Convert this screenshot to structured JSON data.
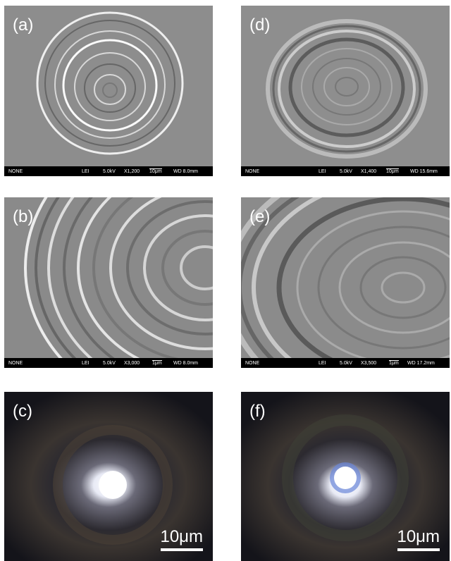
{
  "panels": [
    {
      "label": "(a)",
      "info_bar": [
        "NONE",
        "LEI",
        "5.0kV",
        "X1,200",
        "10μm",
        "WD 8.0mm"
      ]
    },
    {
      "label": "(b)",
      "info_bar": [
        "NONE",
        "LEI",
        "5.0kV",
        "X3,000",
        "1μm",
        "WD 8.0mm"
      ]
    },
    {
      "label": "(c)",
      "scale_bar": "10μm"
    },
    {
      "label": "(d)",
      "info_bar": [
        "NONE",
        "LEI",
        "5.0kV",
        "X1,400",
        "10μm",
        "WD 15.6mm"
      ]
    },
    {
      "label": "(e)",
      "info_bar": [
        "NONE",
        "LEI",
        "5.0kV",
        "X3,500",
        "1μm",
        "WD 17.2mm"
      ]
    },
    {
      "label": "(f)",
      "scale_bar": "10μm"
    }
  ]
}
